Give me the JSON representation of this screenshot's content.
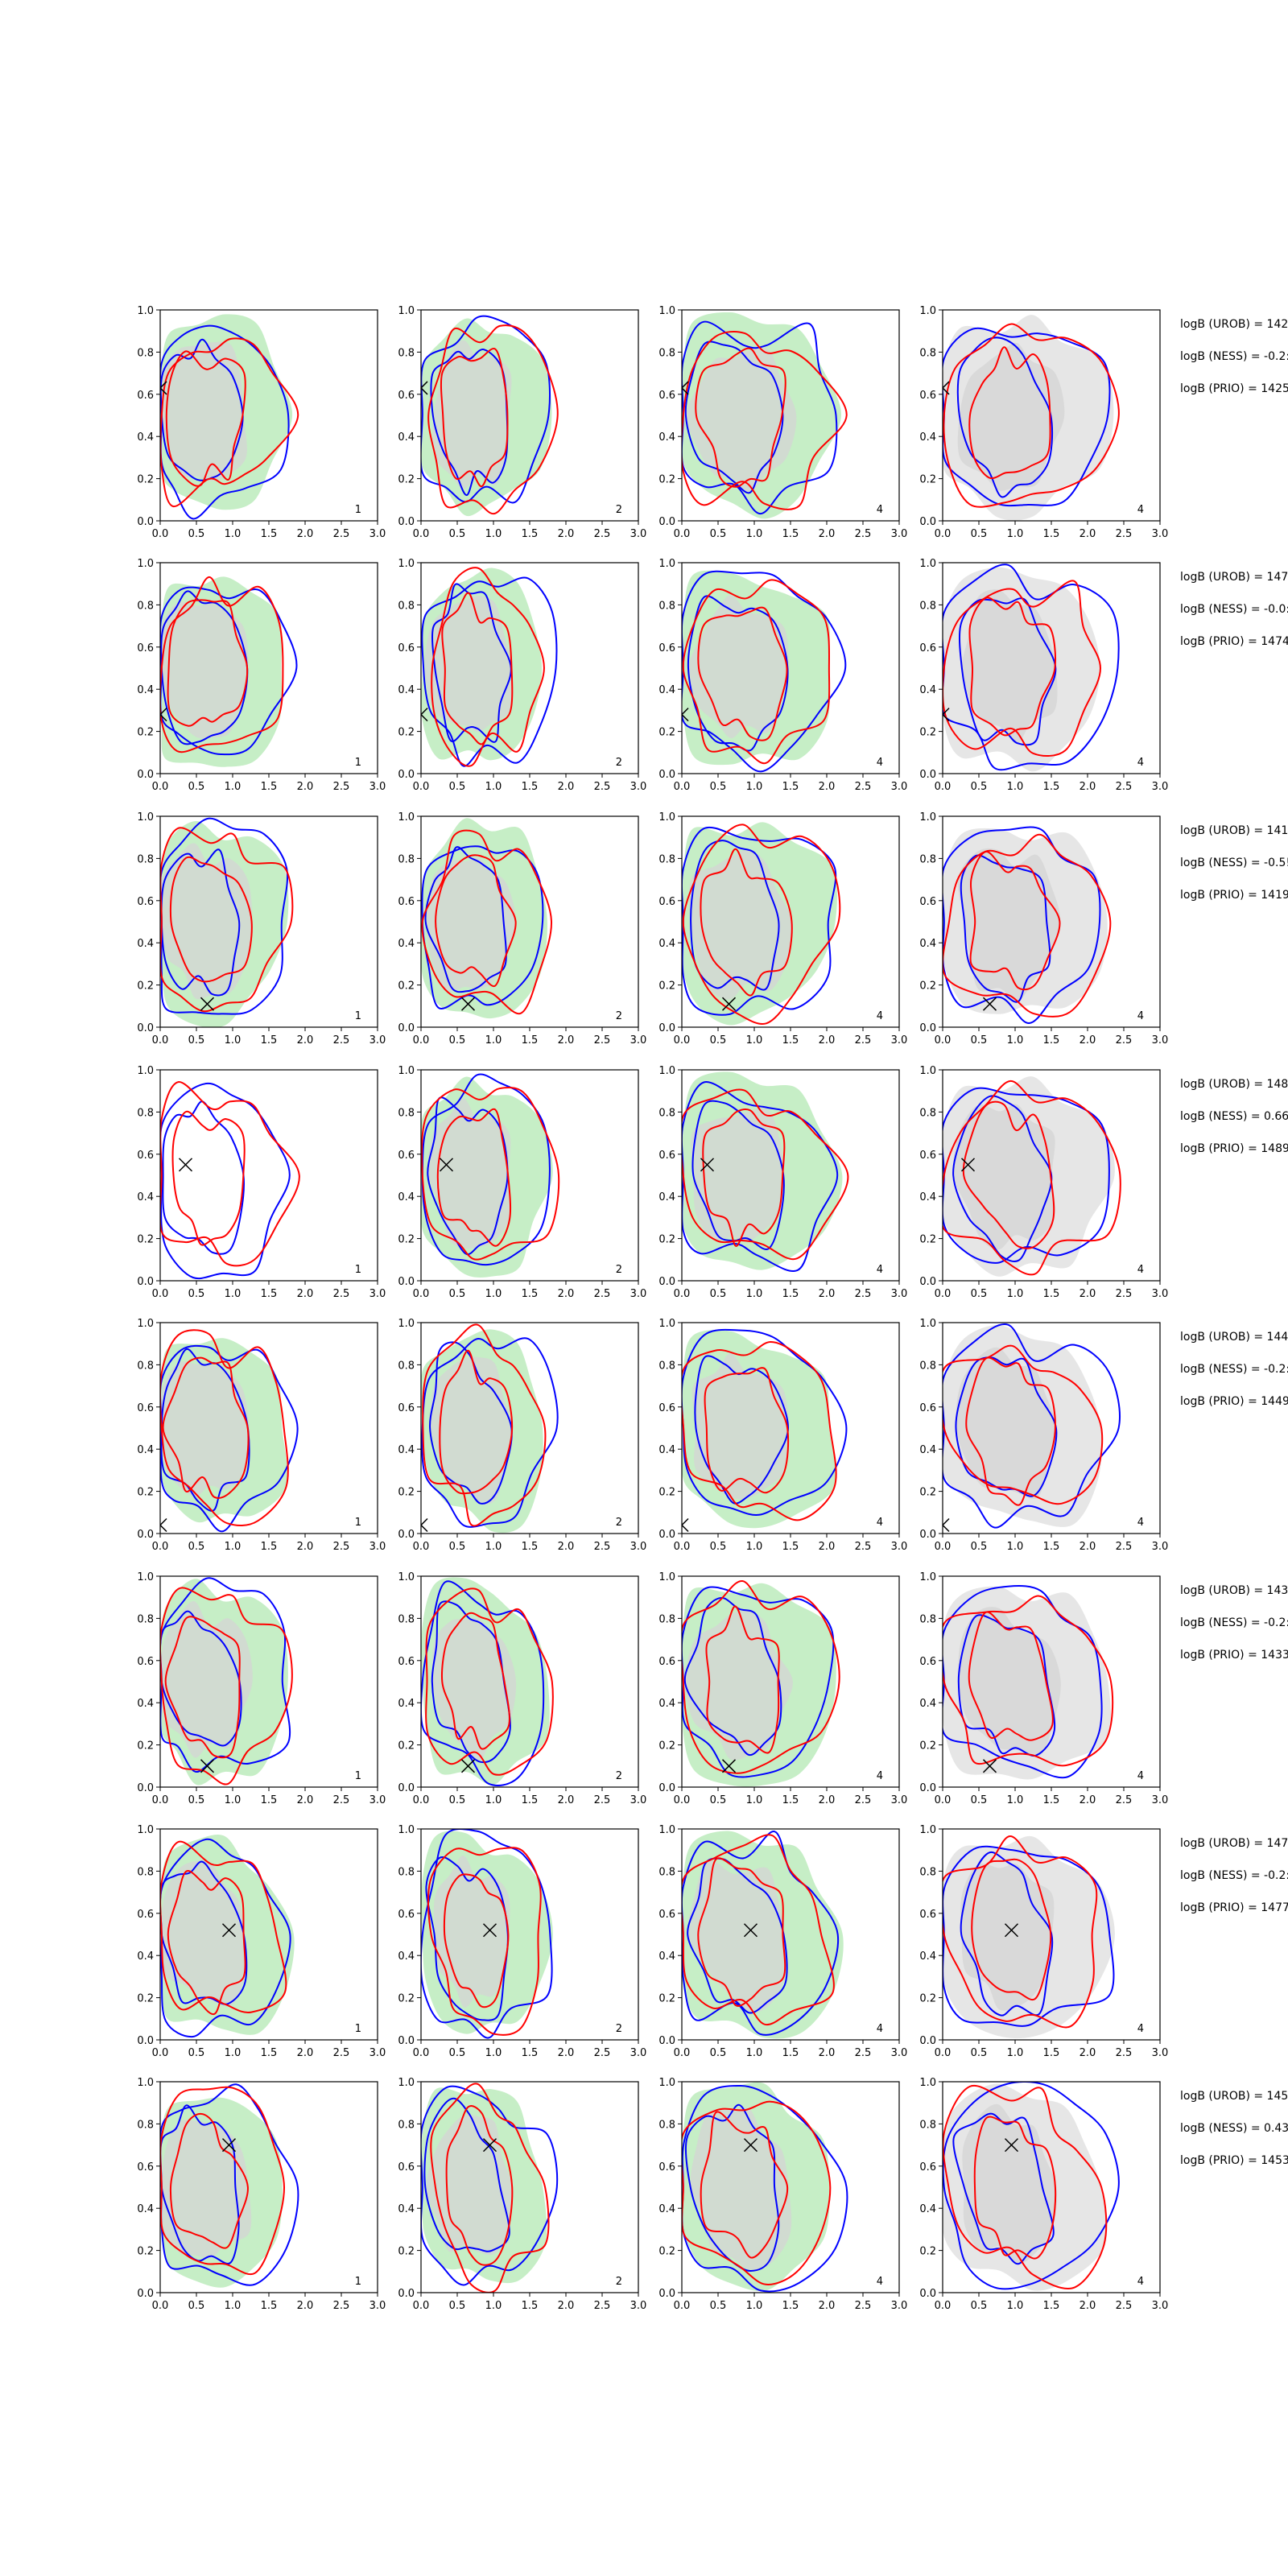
{
  "chart_data": {
    "type": "contour",
    "layout": {
      "rows": 8,
      "cols": 4
    },
    "xlim": [
      0.0,
      3.0
    ],
    "ylim": [
      0.0,
      1.0
    ],
    "xticks": [
      "0.0",
      "0.5",
      "1.0",
      "1.5",
      "2.0",
      "2.5",
      "3.0"
    ],
    "yticks": [
      "0.0",
      "0.2",
      "0.4",
      "0.6",
      "0.8",
      "1.0"
    ],
    "colors": {
      "blue_contour": "#0000ff",
      "red_contour": "#ff0000",
      "green_fill": "#c6eec6",
      "gray_fill": "#d4d4d4",
      "light_gray_fill": "#e6e6e6"
    },
    "panel_labels": [
      "1",
      "2",
      "4",
      "4"
    ],
    "rows": [
      {
        "marker": [
          0.0,
          0.63
        ],
        "annotations": [
          "logB (UROB) = 142",
          "logB (NESS) = -0.2:",
          "logB (PRIO) = 1425"
        ]
      },
      {
        "marker": [
          0.0,
          0.28
        ],
        "annotations": [
          "logB (UROB) = 147",
          "logB (NESS) = -0.0:",
          "logB (PRIO) = 1474"
        ]
      },
      {
        "marker": [
          0.65,
          0.11
        ],
        "annotations": [
          "logB (UROB) = 141",
          "logB (NESS) = -0.5!",
          "logB (PRIO) = 1419"
        ]
      },
      {
        "marker": [
          0.35,
          0.55
        ],
        "annotations": [
          "logB (UROB) = 148",
          "logB (NESS) = 0.66",
          "logB (PRIO) = 1489"
        ]
      },
      {
        "marker": [
          0.0,
          0.04
        ],
        "annotations": [
          "logB (UROB) = 144",
          "logB (NESS) = -0.2:",
          "logB (PRIO) = 1449"
        ]
      },
      {
        "marker": [
          0.65,
          0.1
        ],
        "annotations": [
          "logB (UROB) = 143",
          "logB (NESS) = -0.2:",
          "logB (PRIO) = 1433"
        ]
      },
      {
        "marker": [
          0.95,
          0.52
        ],
        "annotations": [
          "logB (UROB) = 147",
          "logB (NESS) = -0.2:",
          "logB (PRIO) = 1477"
        ]
      },
      {
        "marker": [
          0.95,
          0.7
        ],
        "annotations": [
          "logB (UROB) = 145",
          "logB (NESS) = 0.43",
          "logB (PRIO) = 1453"
        ]
      }
    ]
  }
}
